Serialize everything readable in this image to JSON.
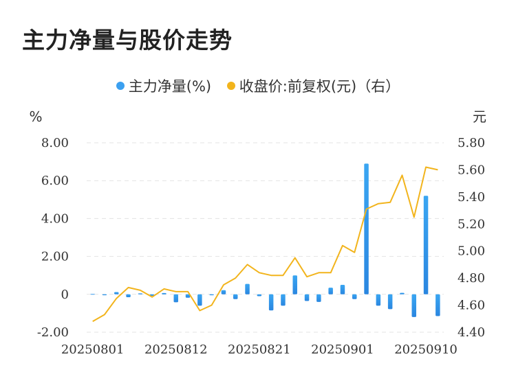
{
  "title": "主力净量与股价走势",
  "legend": [
    {
      "label": "主力净量(%)",
      "color": "#3ba0f0"
    },
    {
      "label": "收盘价:前复权(元)（右）",
      "color": "#f2b41c"
    }
  ],
  "chart_data": {
    "type": "bar+line",
    "title": "主力净量与股价走势",
    "left_axis": {
      "unit": "%",
      "ticks": [
        "8.00",
        "6.00",
        "4.00",
        "2.00",
        "0",
        "-2.00"
      ],
      "ylim": [
        -2,
        8
      ]
    },
    "right_axis": {
      "unit": "元",
      "ticks": [
        "5.80",
        "5.60",
        "5.40",
        "5.20",
        "5.00",
        "4.80",
        "4.60",
        "4.40"
      ],
      "ylim": [
        4.4,
        5.8
      ]
    },
    "x_tick_labels": [
      "20250801",
      "20250812",
      "20250821",
      "20250901",
      "20250910"
    ],
    "x_tick_index": [
      0,
      7,
      14,
      21,
      28
    ],
    "grid": "horizontal dashed",
    "legend_position": "top",
    "series": [
      {
        "name": "主力净量(%)",
        "type": "bar",
        "axis": "left",
        "color": "#3ba0f0",
        "values": [
          0.02,
          -0.05,
          0.12,
          -0.15,
          0.05,
          -0.08,
          0.07,
          -0.42,
          -0.18,
          -0.6,
          -0.05,
          0.22,
          -0.25,
          0.55,
          -0.1,
          -0.85,
          -0.6,
          1.0,
          -0.35,
          -0.4,
          0.35,
          0.5,
          -0.25,
          6.9,
          -0.6,
          -0.78,
          0.08,
          -1.2,
          5.2,
          -1.15
        ]
      },
      {
        "name": "收盘价:前复权(元)（右）",
        "type": "line",
        "axis": "right",
        "color": "#f2b41c",
        "values": [
          4.48,
          4.53,
          4.65,
          4.73,
          4.71,
          4.66,
          4.72,
          4.7,
          4.7,
          4.56,
          4.6,
          4.75,
          4.8,
          4.9,
          4.84,
          4.82,
          4.82,
          4.95,
          4.81,
          4.84,
          4.84,
          5.04,
          4.99,
          5.31,
          5.35,
          5.36,
          5.56,
          5.25,
          5.62,
          5.6
        ]
      }
    ]
  }
}
